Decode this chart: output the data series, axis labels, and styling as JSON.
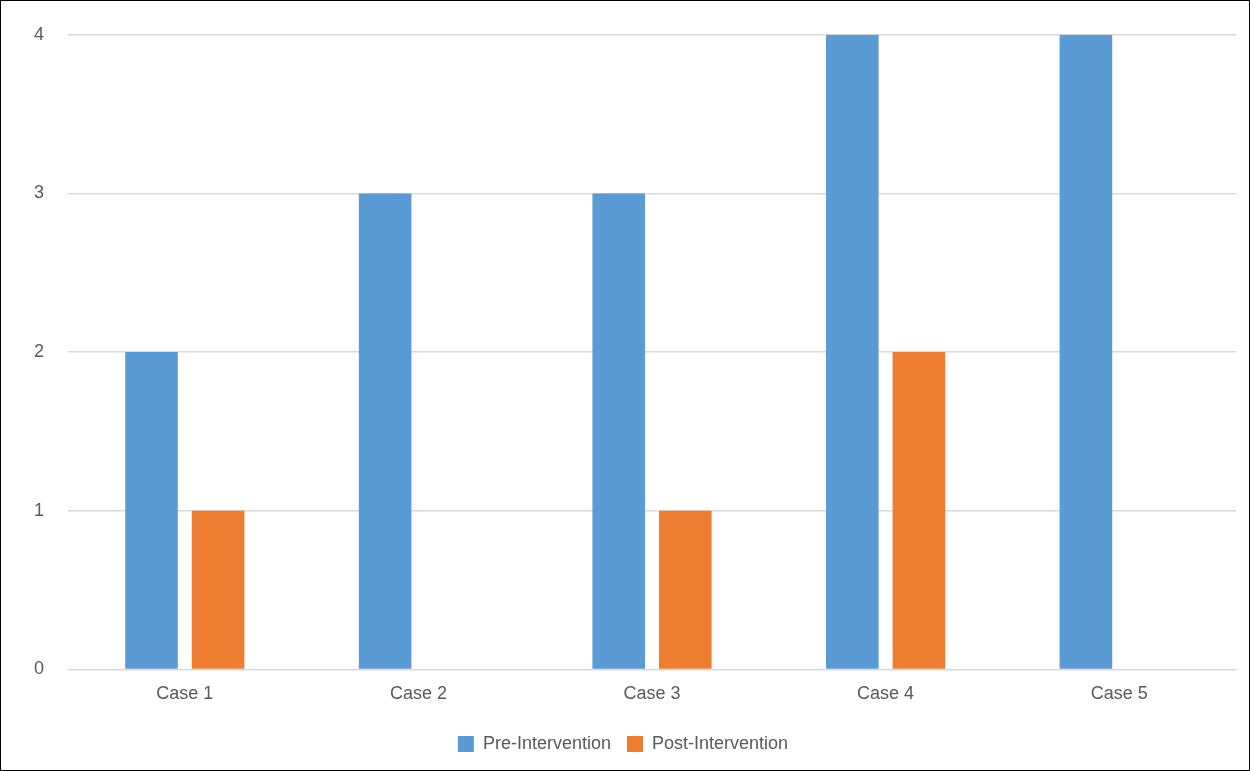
{
  "chart_data": {
    "type": "bar",
    "categories": [
      "Case 1",
      "Case 2",
      "Case 3",
      "Case 4",
      "Case 5"
    ],
    "series": [
      {
        "name": "Pre-Intervention",
        "color": "#5b9bd5",
        "values": [
          2,
          3,
          3,
          4,
          4
        ]
      },
      {
        "name": "Post-Intervention",
        "color": "#ed7d31",
        "values": [
          1,
          0,
          1,
          2,
          0
        ]
      }
    ],
    "ylim": [
      0,
      4
    ],
    "yticks": [
      0,
      1,
      2,
      3,
      4
    ],
    "grid": "y",
    "legend": "bottom"
  }
}
